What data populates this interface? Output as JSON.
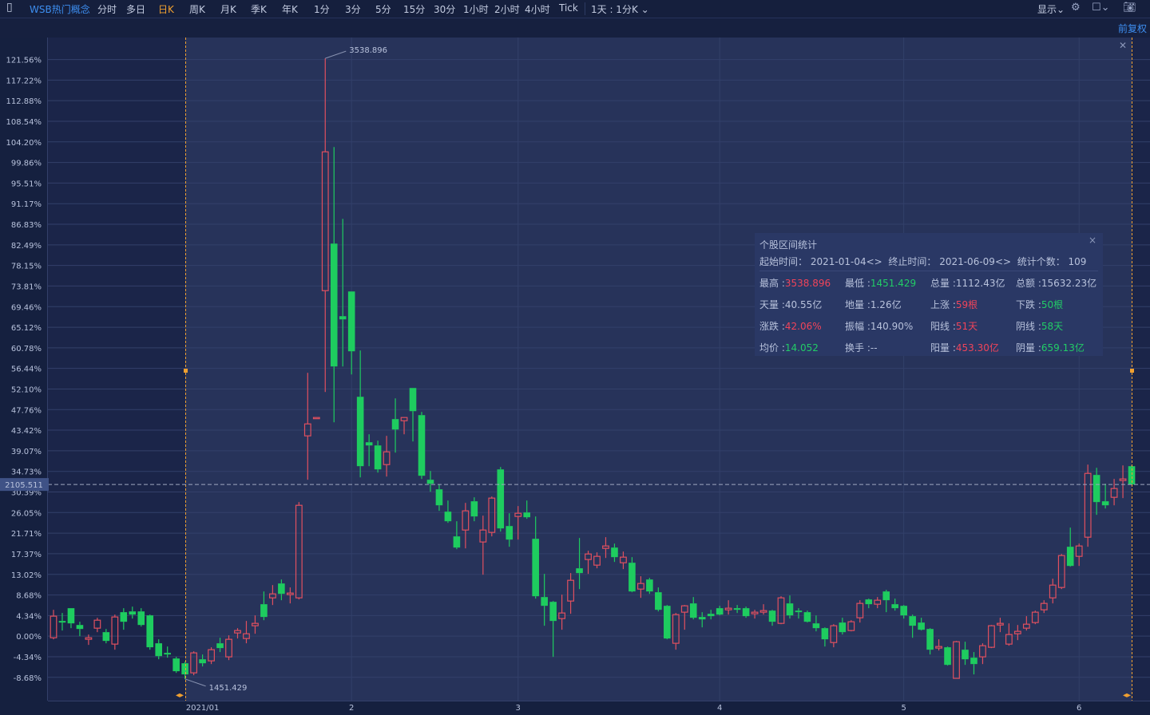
{
  "toolbar": {
    "brand": "WSB热门概念",
    "periods": [
      "分时",
      "多日",
      "日K",
      "周K",
      "月K",
      "季K",
      "年K",
      "1分",
      "3分",
      "5分",
      "15分",
      "30分",
      "1小时",
      "2小时",
      "4小时",
      "Tick"
    ],
    "active_period": "日K",
    "interval_select": "1天 : 1分K ⌄",
    "display_menu": "显示⌄",
    "icons": [
      "layout-toggle-icon",
      "settings-gear-icon",
      "window-square-icon",
      "camera-screenshot-icon"
    ]
  },
  "adjust_label": "前复权",
  "crosshair_price": "2105.511",
  "annotations": {
    "high": "3538.896",
    "low": "1451.429"
  },
  "colors": {
    "up": "#e0505f",
    "down": "#1ecc5f",
    "accent": "#f0a030",
    "brand": "#3d8ef0"
  },
  "stats_panel": {
    "title": "个股区间统计",
    "start_label": "起始时间：",
    "start_value": "2021-01-04",
    "end_label": "终止时间：",
    "end_value": "2021-06-09",
    "count_label": "统计个数：",
    "count_value": "109",
    "rows": [
      [
        {
          "label": "最高 :",
          "value": "3538.896",
          "color": "red"
        },
        {
          "label": "最低 :",
          "value": "1451.429",
          "color": "green"
        },
        {
          "label": "总量 :",
          "value": "1112.43亿",
          "color": ""
        },
        {
          "label": "总额 :",
          "value": "15632.23亿",
          "color": ""
        }
      ],
      [
        {
          "label": "天量 :",
          "value": "40.55亿",
          "color": ""
        },
        {
          "label": "地量 :",
          "value": "1.26亿",
          "color": ""
        },
        {
          "label": "上涨 :",
          "value": "59根",
          "color": "red"
        },
        {
          "label": "下跌 :",
          "value": "50根",
          "color": "green"
        }
      ],
      [
        {
          "label": "涨跌 :",
          "value": "42.06%",
          "color": "red"
        },
        {
          "label": "振幅 :",
          "value": "140.90%",
          "color": ""
        },
        {
          "label": "阳线 :",
          "value": "51天",
          "color": "red"
        },
        {
          "label": "阴线 :",
          "value": "58天",
          "color": "green"
        }
      ],
      [
        {
          "label": "均价 :",
          "value": "14.052",
          "color": "green"
        },
        {
          "label": "换手 :",
          "value": "--",
          "color": ""
        },
        {
          "label": "阳量 :",
          "value": "453.30亿",
          "color": "red"
        },
        {
          "label": "阴量 :",
          "value": "659.13亿",
          "color": "green"
        }
      ]
    ]
  },
  "chart_data": {
    "type": "candlestick",
    "ylabel_unit": "%",
    "ylim": [
      -13.6,
      126.2
    ],
    "grid": true,
    "y_ticks": [
      "121.56%",
      "117.22%",
      "112.88%",
      "108.54%",
      "104.20%",
      "99.86%",
      "95.51%",
      "91.17%",
      "86.83%",
      "82.49%",
      "78.15%",
      "73.81%",
      "69.46%",
      "65.12%",
      "60.78%",
      "56.44%",
      "52.10%",
      "47.76%",
      "43.42%",
      "39.07%",
      "34.73%",
      "30.39%",
      "26.05%",
      "21.71%",
      "17.37%",
      "13.02%",
      "8.68%",
      "4.34%",
      "0.00%",
      "-4.34%",
      "-8.68%"
    ],
    "x_ticks": [
      {
        "index": 17,
        "label": "2021/01"
      },
      {
        "index": 34,
        "label": "2"
      },
      {
        "index": 53,
        "label": "3"
      },
      {
        "index": 76,
        "label": "4"
      },
      {
        "index": 97,
        "label": "5"
      },
      {
        "index": 117,
        "label": "6"
      }
    ],
    "selection": {
      "start_index": 15,
      "end_index": 123
    },
    "ohlc_fields": [
      "open",
      "high",
      "low",
      "close"
    ],
    "candles": [
      [
        -0.34,
        5.55,
        -0.67,
        4.21
      ],
      [
        3.2,
        4.88,
        1.18,
        2.86
      ],
      [
        5.89,
        5.89,
        1.68,
        2.69
      ],
      [
        2.35,
        3.03,
        0,
        1.51
      ],
      [
        -0.67,
        0.34,
        -1.85,
        -0.34
      ],
      [
        1.68,
        3.87,
        0.84,
        3.36
      ],
      [
        0.84,
        1.51,
        -1.51,
        -1.01
      ],
      [
        -1.68,
        4.54,
        -2.86,
        4.04
      ],
      [
        5.05,
        5.89,
        1.35,
        3.03
      ],
      [
        5.21,
        6.22,
        3.7,
        4.54
      ],
      [
        5.21,
        5.89,
        2.02,
        2.35
      ],
      [
        4.37,
        4.54,
        -2.86,
        -2.35
      ],
      [
        -1.51,
        -0.67,
        -4.88,
        -4.21
      ],
      [
        -3.53,
        -2.19,
        -4.54,
        -3.87
      ],
      [
        -4.71,
        -4.37,
        -7.74,
        -7.4
      ],
      [
        -5.72,
        -5.38,
        -9.03,
        -8.07
      ],
      [
        -7.74,
        -3.2,
        -8.24,
        -3.53
      ],
      [
        -4.88,
        -3.87,
        -6.39,
        -5.72
      ],
      [
        -5.21,
        -2.35,
        -5.89,
        -2.86
      ],
      [
        -1.51,
        -0.34,
        -3.36,
        -2.52
      ],
      [
        -4.37,
        0.17,
        -5.05,
        -0.67
      ],
      [
        0.67,
        1.68,
        -0.5,
        1.18
      ],
      [
        -0.5,
        3.2,
        -1.51,
        0.5
      ],
      [
        2.19,
        4.37,
        0.5,
        2.69
      ],
      [
        6.73,
        9.42,
        3.36,
        4.04
      ],
      [
        8.07,
        10.76,
        6.56,
        8.91
      ],
      [
        11.1,
        11.94,
        7.57,
        8.91
      ],
      [
        8.75,
        10.26,
        6.9,
        9.08
      ],
      [
        8.07,
        28.26,
        7.74,
        27.58
      ],
      [
        42.22,
        55.51,
        32.97,
        44.74
      ],
      [
        46.09,
        46.09,
        46.09,
        46.09
      ],
      [
        72.83,
        121.8,
        51.47,
        102.1
      ],
      [
        82.75,
        103.11,
        45.08,
        56.85
      ],
      [
        67.45,
        87.97,
        56.85,
        66.78
      ],
      [
        72.66,
        72.66,
        55.17,
        60.05
      ],
      [
        50.46,
        60.22,
        33.47,
        35.83
      ],
      [
        40.87,
        42.55,
        35.83,
        40.2
      ],
      [
        40.2,
        41.21,
        34.48,
        35.15
      ],
      [
        36.16,
        42.22,
        33.64,
        38.85
      ],
      [
        45.75,
        50.12,
        38.69,
        43.56
      ],
      [
        45.41,
        46.09,
        42.55,
        46.09
      ],
      [
        52.31,
        52.31,
        41.04,
        47.43
      ],
      [
        46.59,
        47.26,
        33.14,
        33.81
      ],
      [
        32.97,
        34.82,
        30.44,
        32.13
      ],
      [
        30.95,
        31.96,
        26.41,
        27.58
      ],
      [
        26.24,
        28.59,
        23.88,
        24.22
      ],
      [
        21.03,
        24.22,
        18.33,
        18.67
      ],
      [
        22.37,
        28.09,
        18.5,
        26.41
      ],
      [
        28.43,
        29.27,
        24.22,
        25.23
      ],
      [
        19.85,
        25.4,
        12.95,
        22.37
      ],
      [
        21.87,
        29.44,
        21.03,
        29.1
      ],
      [
        35.15,
        35.66,
        22.03,
        22.71
      ],
      [
        23.21,
        25.9,
        18.84,
        20.35
      ],
      [
        25.23,
        27.42,
        20.35,
        25.9
      ],
      [
        26.07,
        28.59,
        24.73,
        25.06
      ],
      [
        20.52,
        25.23,
        7.91,
        8.41
      ],
      [
        8.24,
        13.12,
        2.19,
        6.39
      ],
      [
        7.23,
        7.4,
        -4.37,
        3.2
      ],
      [
        3.7,
        8.75,
        1.35,
        4.88
      ],
      [
        7.4,
        13.29,
        4.71,
        11.77
      ],
      [
        14.3,
        20.69,
        9.92,
        13.29
      ],
      [
        16.15,
        18.0,
        13.12,
        17.32
      ],
      [
        14.97,
        17.66,
        14.3,
        16.82
      ],
      [
        18.5,
        20.86,
        16.48,
        19.01
      ],
      [
        18.67,
        19.51,
        15.64,
        16.65
      ],
      [
        15.47,
        17.83,
        14.13,
        16.65
      ],
      [
        15.47,
        16.65,
        9.25,
        9.42
      ],
      [
        9.92,
        12.62,
        8.07,
        11.1
      ],
      [
        11.94,
        12.28,
        8.91,
        9.42
      ],
      [
        9.25,
        10.26,
        5.21,
        5.55
      ],
      [
        6.39,
        6.56,
        -0.67,
        -0.5
      ],
      [
        -1.51,
        4.88,
        -2.86,
        4.54
      ],
      [
        5.05,
        6.56,
        1.35,
        6.39
      ],
      [
        6.9,
        8.24,
        3.53,
        3.87
      ],
      [
        4.04,
        5.05,
        1.85,
        3.53
      ],
      [
        4.71,
        5.55,
        3.53,
        4.21
      ],
      [
        5.89,
        6.39,
        4.37,
        4.54
      ],
      [
        5.55,
        7.57,
        4.54,
        5.89
      ],
      [
        5.89,
        6.56,
        4.88,
        5.55
      ],
      [
        5.89,
        6.22,
        3.87,
        4.21
      ],
      [
        4.71,
        5.55,
        3.7,
        5.05
      ],
      [
        5.05,
        6.73,
        4.54,
        5.38
      ],
      [
        5.38,
        5.55,
        2.19,
        3.03
      ],
      [
        2.69,
        8.41,
        2.52,
        8.07
      ],
      [
        6.9,
        8.58,
        3.7,
        4.37
      ],
      [
        5.38,
        5.89,
        3.7,
        5.05
      ],
      [
        5.05,
        5.38,
        2.86,
        3.03
      ],
      [
        2.69,
        4.37,
        1.01,
        1.68
      ],
      [
        1.68,
        1.85,
        -2.19,
        -0.67
      ],
      [
        -1.35,
        2.52,
        -2.35,
        2.19
      ],
      [
        2.86,
        3.87,
        0.34,
        0.84
      ],
      [
        1.18,
        3.36,
        1.01,
        3.03
      ],
      [
        3.87,
        7.57,
        2.86,
        6.9
      ],
      [
        7.74,
        7.91,
        5.89,
        6.73
      ],
      [
        6.73,
        8.24,
        5.89,
        7.57
      ],
      [
        9.42,
        9.76,
        5.05,
        7.57
      ],
      [
        6.73,
        7.91,
        5.38,
        5.89
      ],
      [
        6.39,
        6.56,
        3.7,
        4.37
      ],
      [
        4.21,
        4.54,
        -0.34,
        2.19
      ],
      [
        2.86,
        3.87,
        1.18,
        1.35
      ],
      [
        1.51,
        1.68,
        -3.87,
        -2.86
      ],
      [
        -2.52,
        -0.67,
        -3.03,
        -2.19
      ],
      [
        -2.35,
        -2.19,
        -6.22,
        -6.06
      ],
      [
        -8.9,
        -1.01,
        -8.9,
        -1.18
      ],
      [
        -2.86,
        -1.18,
        -6.06,
        -4.88
      ],
      [
        -4.54,
        -3.36,
        -8.07,
        -5.89
      ],
      [
        -4.37,
        -1.51,
        -5.89,
        -2.02
      ],
      [
        -2.35,
        2.35,
        -2.52,
        2.19
      ],
      [
        2.35,
        3.87,
        0.84,
        2.69
      ],
      [
        -1.68,
        2.69,
        -2.02,
        0.34
      ],
      [
        0.5,
        2.35,
        -0.84,
        1.01
      ],
      [
        1.68,
        4.21,
        1.18,
        2.52
      ],
      [
        2.86,
        5.38,
        2.52,
        5.05
      ],
      [
        5.55,
        7.57,
        4.88,
        6.9
      ],
      [
        8.07,
        12.11,
        6.9,
        10.76
      ],
      [
        10.26,
        17.32,
        9.92,
        16.99
      ],
      [
        18.84,
        22.88,
        14.63,
        14.8
      ],
      [
        16.82,
        19.51,
        14.8,
        19.01
      ],
      [
        20.86,
        36.16,
        18.84,
        34.31
      ],
      [
        33.98,
        35.49,
        25.57,
        28.26
      ],
      [
        28.43,
        32.13,
        26.91,
        27.58
      ],
      [
        29.27,
        33.14,
        27.58,
        31.12
      ],
      [
        32.8,
        35.99,
        29.1,
        33.14
      ],
      [
        35.83,
        35.99,
        31.97,
        31.97
      ]
    ],
    "last_value_pct": 31.97
  }
}
